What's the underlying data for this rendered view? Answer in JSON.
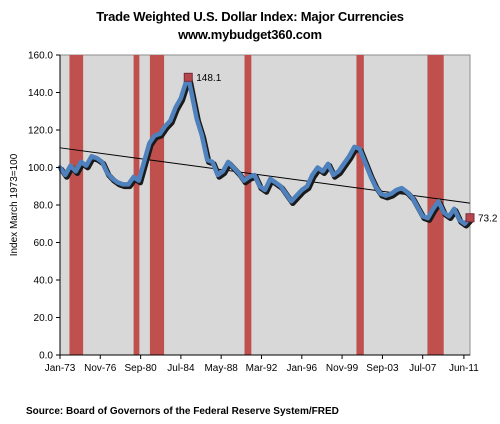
{
  "title_line1": "Trade Weighted U.S. Dollar Index: Major Currencies",
  "title_line2": "www.mybudget360.com",
  "source": "Source: Board of Governors of the Federal Reserve System/FRED",
  "chart_data": {
    "type": "line",
    "title": "Trade Weighted U.S. Dollar Index: Major Currencies",
    "ylabel": "Index March 1973=100",
    "xlabel": "",
    "ylim": [
      0,
      160
    ],
    "xlim": [
      1973.0,
      2012.0
    ],
    "yticks": [
      "0.0",
      "20.0",
      "40.0",
      "60.0",
      "80.0",
      "100.0",
      "120.0",
      "140.0",
      "160.0"
    ],
    "xtick_labels": [
      "Jan-73",
      "Nov-76",
      "Sep-80",
      "Jul-84",
      "May-88",
      "Mar-92",
      "Jan-96",
      "Nov-99",
      "Sep-03",
      "Jul-07",
      "Jun-11"
    ],
    "xtick_positions": [
      1973.0,
      1976.83,
      1980.67,
      1984.5,
      1988.33,
      1992.17,
      1996.0,
      1999.83,
      2003.67,
      2007.5,
      2011.42
    ],
    "grid": false,
    "legend": "none",
    "series": [
      {
        "color": "#4f81bd",
        "x": [
          1973.0,
          1973.5,
          1974.0,
          1974.5,
          1975.0,
          1975.5,
          1976.0,
          1976.5,
          1977.0,
          1977.5,
          1978.0,
          1978.5,
          1979.0,
          1979.5,
          1980.0,
          1980.5,
          1981.0,
          1981.5,
          1982.0,
          1982.5,
          1983.0,
          1983.5,
          1984.0,
          1984.5,
          1985.0,
          1985.2,
          1985.5,
          1986.0,
          1986.5,
          1987.0,
          1987.5,
          1988.0,
          1988.5,
          1989.0,
          1989.5,
          1990.0,
          1990.5,
          1991.0,
          1991.5,
          1992.0,
          1992.5,
          1993.0,
          1993.5,
          1994.0,
          1994.5,
          1995.0,
          1995.5,
          1996.0,
          1996.5,
          1997.0,
          1997.5,
          1998.0,
          1998.5,
          1999.0,
          1999.5,
          2000.0,
          2000.5,
          2001.0,
          2001.5,
          2002.0,
          2002.5,
          2003.0,
          2003.5,
          2004.0,
          2004.5,
          2005.0,
          2005.5,
          2006.0,
          2006.5,
          2007.0,
          2007.5,
          2008.0,
          2008.5,
          2009.0,
          2009.5,
          2010.0,
          2010.5,
          2011.0,
          2011.5,
          2012.0
        ],
        "y": [
          100,
          96,
          101,
          98,
          103,
          101,
          106,
          105,
          103,
          97,
          94,
          92,
          91,
          91,
          95,
          93,
          103,
          113,
          117,
          118,
          122,
          125,
          132,
          137,
          146,
          148.1,
          140,
          126,
          117,
          104,
          103,
          96,
          98,
          103,
          100,
          97,
          93,
          95,
          96,
          90,
          88,
          94,
          92,
          90,
          86,
          82,
          85,
          88,
          90,
          96,
          100,
          98,
          102,
          96,
          98,
          102,
          106,
          111,
          110,
          103,
          96,
          90,
          86,
          85,
          86,
          88,
          89,
          87,
          84,
          79,
          74,
          73,
          78,
          82,
          76,
          74,
          78,
          72,
          70,
          73.2
        ]
      }
    ],
    "trendline": {
      "from": [
        1973.0,
        110.5
      ],
      "to": [
        2012.0,
        81.0
      ],
      "color": "#000000"
    },
    "shaded_periods_color": "#c0504d",
    "shaded_periods": [
      [
        1973.9,
        1975.2
      ],
      [
        1980.0,
        1980.55
      ],
      [
        1981.55,
        1982.9
      ],
      [
        1990.55,
        1991.2
      ],
      [
        2001.2,
        2001.9
      ],
      [
        2007.95,
        2009.5
      ]
    ],
    "annotations": [
      {
        "label": "148.1",
        "x": 1985.2,
        "y": 148.1
      },
      {
        "label": "73.2",
        "x": 2012.0,
        "y": 73.2
      }
    ]
  }
}
